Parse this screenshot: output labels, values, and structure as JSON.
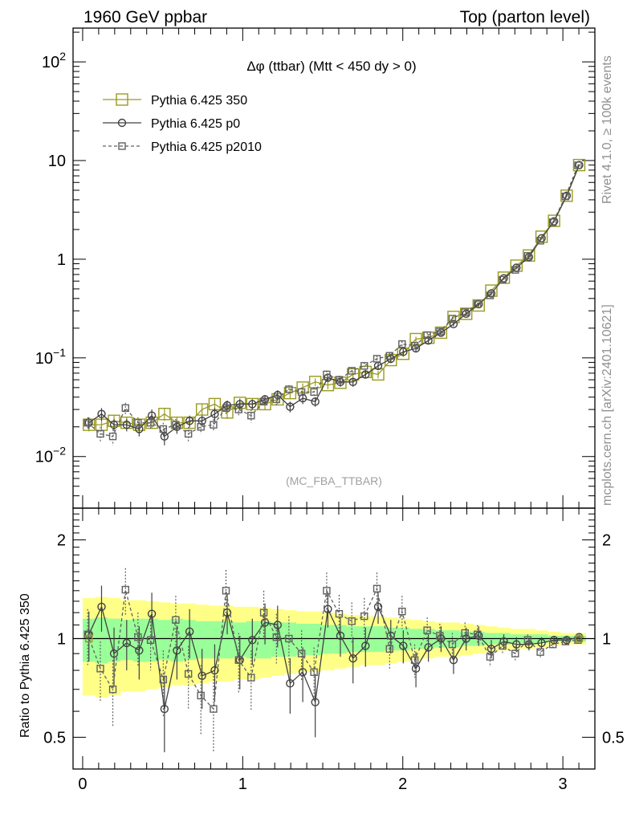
{
  "header": {
    "left_title": "1960 GeV ppbar",
    "right_title": "Top (parton level)"
  },
  "plot_title": "Δφ (ttbar) (Mtt < 450 dy > 0)",
  "analysis_tag": "(MC_FBA_TTBAR)",
  "side_text": {
    "rivet": "Rivet 4.1.0, ≥ 100k events",
    "mcplots": "mcplots.cern.ch [arXiv:2401.10621]"
  },
  "colors": {
    "series_350": "#9a9a20",
    "series_p0": "#404040",
    "series_p2010": "#606060",
    "band_inner": "#99ff99",
    "band_outer": "#ffff88"
  },
  "chart_data": [
    {
      "type": "line",
      "title": "Δφ (ttbar) (Mtt < 450 dy > 0)",
      "yscale": "log",
      "ylim": [
        0.003,
        220
      ],
      "xlim": [
        -0.06,
        3.2
      ],
      "y_ticks": [
        {
          "value": 0.01,
          "base": "10",
          "exp": "−2",
          "label": ""
        },
        {
          "value": 0.1,
          "base": "10",
          "exp": "−1",
          "label": ""
        },
        {
          "value": 1,
          "base": "",
          "exp": "",
          "label": "1"
        },
        {
          "value": 10,
          "base": "",
          "exp": "",
          "label": "10"
        },
        {
          "value": 100,
          "base": "10",
          "exp": "2",
          "label": ""
        }
      ],
      "legend": {
        "position": "top-left",
        "entries": [
          "Pythia 6.425 350",
          "Pythia 6.425 p0",
          "Pythia 6.425 p2010"
        ]
      },
      "x": [
        0.039,
        0.118,
        0.196,
        0.275,
        0.353,
        0.432,
        0.511,
        0.589,
        0.668,
        0.746,
        0.825,
        0.903,
        0.982,
        1.06,
        1.139,
        1.218,
        1.296,
        1.375,
        1.453,
        1.532,
        1.61,
        1.689,
        1.767,
        1.846,
        1.925,
        2.003,
        2.082,
        2.16,
        2.239,
        2.317,
        2.396,
        2.474,
        2.553,
        2.631,
        2.71,
        2.788,
        2.867,
        2.945,
        3.024,
        3.102
      ],
      "series": [
        {
          "name": "Pythia 6.425 350",
          "values": [
            0.021,
            0.021,
            0.023,
            0.022,
            0.021,
            0.022,
            0.027,
            0.022,
            0.022,
            0.03,
            0.034,
            0.028,
            0.035,
            0.034,
            0.034,
            0.038,
            0.044,
            0.05,
            0.057,
            0.053,
            0.056,
            0.068,
            0.072,
            0.068,
            0.095,
            0.11,
            0.155,
            0.16,
            0.18,
            0.26,
            0.28,
            0.34,
            0.48,
            0.65,
            0.86,
            1.09,
            1.69,
            2.45,
            4.4,
            9.0
          ],
          "errors": [
            0.003,
            0.003,
            0.003,
            0.003,
            0.003,
            0.003,
            0.004,
            0.003,
            0.003,
            0.004,
            0.004,
            0.004,
            0.004,
            0.004,
            0.004,
            0.004,
            0.005,
            0.005,
            0.005,
            0.005,
            0.005,
            0.006,
            0.006,
            0.006,
            0.007,
            0.008,
            0.009,
            0.009,
            0.01,
            0.012,
            0.013,
            0.014,
            0.018,
            0.022,
            0.028,
            0.035,
            0.05,
            0.07,
            0.11,
            0.2
          ]
        },
        {
          "name": "Pythia 6.425 p0",
          "values": [
            0.022,
            0.027,
            0.021,
            0.021,
            0.019,
            0.026,
            0.016,
            0.02,
            0.023,
            0.023,
            0.027,
            0.033,
            0.034,
            0.034,
            0.038,
            0.042,
            0.032,
            0.039,
            0.036,
            0.063,
            0.057,
            0.057,
            0.068,
            0.083,
            0.098,
            0.115,
            0.125,
            0.15,
            0.18,
            0.22,
            0.28,
            0.35,
            0.45,
            0.64,
            0.82,
            1.05,
            1.63,
            2.42,
            4.4,
            9.0
          ],
          "errors": [
            0.003,
            0.004,
            0.003,
            0.003,
            0.003,
            0.004,
            0.003,
            0.003,
            0.003,
            0.003,
            0.004,
            0.004,
            0.004,
            0.004,
            0.004,
            0.005,
            0.004,
            0.005,
            0.004,
            0.006,
            0.006,
            0.006,
            0.006,
            0.007,
            0.008,
            0.008,
            0.009,
            0.009,
            0.01,
            0.011,
            0.013,
            0.014,
            0.017,
            0.021,
            0.026,
            0.033,
            0.048,
            0.068,
            0.11,
            0.2
          ]
        },
        {
          "name": "Pythia 6.425 p2010",
          "values": [
            0.022,
            0.017,
            0.016,
            0.031,
            0.022,
            0.022,
            0.019,
            0.021,
            0.017,
            0.02,
            0.021,
            0.031,
            0.03,
            0.026,
            0.036,
            0.038,
            0.048,
            0.045,
            0.045,
            0.068,
            0.06,
            0.074,
            0.083,
            0.098,
            0.105,
            0.138,
            0.133,
            0.17,
            0.185,
            0.25,
            0.29,
            0.35,
            0.43,
            0.62,
            0.78,
            1.08,
            1.54,
            2.37,
            4.33,
            8.95
          ],
          "errors": [
            0.003,
            0.003,
            0.003,
            0.004,
            0.003,
            0.003,
            0.003,
            0.003,
            0.003,
            0.003,
            0.003,
            0.004,
            0.004,
            0.004,
            0.004,
            0.005,
            0.005,
            0.005,
            0.005,
            0.006,
            0.006,
            0.006,
            0.007,
            0.007,
            0.008,
            0.009,
            0.009,
            0.01,
            0.01,
            0.012,
            0.013,
            0.014,
            0.017,
            0.021,
            0.026,
            0.034,
            0.047,
            0.067,
            0.11,
            0.2
          ]
        }
      ]
    },
    {
      "type": "line",
      "ylabel": "Ratio to Pythia 6.425 350",
      "yscale": "log",
      "ylim": [
        0.4,
        2.5
      ],
      "xlim": [
        -0.06,
        3.2
      ],
      "y_ticks": [
        0.5,
        1,
        2
      ],
      "x_ticks": [
        0,
        1,
        2,
        3
      ],
      "reference_line": 1,
      "band_x_edges": [
        0,
        0.079,
        0.157,
        0.236,
        0.314,
        0.393,
        0.471,
        0.55,
        0.628,
        0.707,
        0.785,
        0.864,
        0.942,
        1.021,
        1.1,
        1.178,
        1.257,
        1.335,
        1.414,
        1.492,
        1.571,
        1.649,
        1.728,
        1.806,
        1.885,
        1.963,
        2.042,
        2.121,
        2.199,
        2.278,
        2.356,
        2.435,
        2.513,
        2.592,
        2.67,
        2.749,
        2.827,
        2.906,
        2.985,
        3.063,
        3.142
      ],
      "band_inner": [
        0.15,
        0.16,
        0.15,
        0.14,
        0.15,
        0.15,
        0.14,
        0.15,
        0.14,
        0.13,
        0.13,
        0.13,
        0.12,
        0.13,
        0.13,
        0.12,
        0.12,
        0.11,
        0.11,
        0.1,
        0.1,
        0.09,
        0.09,
        0.09,
        0.08,
        0.08,
        0.07,
        0.07,
        0.06,
        0.06,
        0.05,
        0.05,
        0.04,
        0.04,
        0.03,
        0.03,
        0.03,
        0.02,
        0.02,
        0.02
      ],
      "band_outer": [
        0.33,
        0.34,
        0.33,
        0.31,
        0.31,
        0.3,
        0.29,
        0.28,
        0.28,
        0.27,
        0.26,
        0.26,
        0.25,
        0.25,
        0.24,
        0.23,
        0.22,
        0.21,
        0.21,
        0.2,
        0.19,
        0.18,
        0.17,
        0.17,
        0.16,
        0.15,
        0.14,
        0.13,
        0.12,
        0.12,
        0.11,
        0.1,
        0.09,
        0.08,
        0.07,
        0.07,
        0.06,
        0.05,
        0.04,
        0.04
      ],
      "series": [
        {
          "name": "Pythia 6.425 p0",
          "values": [
            1.03,
            1.25,
            0.9,
            0.97,
            0.92,
            1.19,
            0.61,
            0.92,
            1.05,
            0.77,
            0.8,
            1.2,
            0.86,
            0.99,
            1.12,
            1.1,
            0.73,
            0.79,
            0.64,
            1.23,
            1.02,
            0.87,
            0.95,
            1.25,
            1.02,
            0.95,
            0.81,
            0.94,
            1.0,
            0.86,
            1.0,
            1.02,
            0.93,
            0.98,
            0.96,
            0.96,
            0.97,
            0.99,
            0.99,
            1.01
          ],
          "errors": [
            0.18,
            0.2,
            0.18,
            0.17,
            0.17,
            0.19,
            0.16,
            0.17,
            0.18,
            0.16,
            0.16,
            0.17,
            0.16,
            0.16,
            0.16,
            0.16,
            0.14,
            0.15,
            0.14,
            0.15,
            0.14,
            0.14,
            0.13,
            0.14,
            0.12,
            0.11,
            0.1,
            0.09,
            0.09,
            0.08,
            0.08,
            0.07,
            0.06,
            0.05,
            0.05,
            0.04,
            0.04,
            0.03,
            0.03,
            0.02
          ]
        },
        {
          "name": "Pythia 6.425 p2010",
          "values": [
            1.03,
            0.81,
            0.7,
            1.41,
            1.01,
            0.99,
            0.75,
            1.14,
            0.78,
            0.67,
            0.61,
            1.4,
            0.86,
            0.76,
            1.2,
            1.01,
            1.0,
            0.9,
            0.79,
            1.4,
            1.19,
            1.13,
            1.17,
            1.42,
            0.93,
            1.21,
            0.86,
            1.06,
            1.02,
            0.96,
            1.04,
            1.03,
            0.88,
            0.95,
            0.9,
            0.99,
            0.91,
            0.96,
            0.98,
            0.99
          ],
          "errors": [
            0.2,
            0.17,
            0.16,
            0.23,
            0.19,
            0.19,
            0.17,
            0.21,
            0.17,
            0.16,
            0.16,
            0.22,
            0.18,
            0.16,
            0.2,
            0.18,
            0.17,
            0.16,
            0.15,
            0.19,
            0.17,
            0.16,
            0.16,
            0.17,
            0.12,
            0.14,
            0.1,
            0.1,
            0.09,
            0.08,
            0.08,
            0.07,
            0.06,
            0.05,
            0.05,
            0.04,
            0.04,
            0.03,
            0.03,
            0.02
          ]
        }
      ]
    }
  ]
}
